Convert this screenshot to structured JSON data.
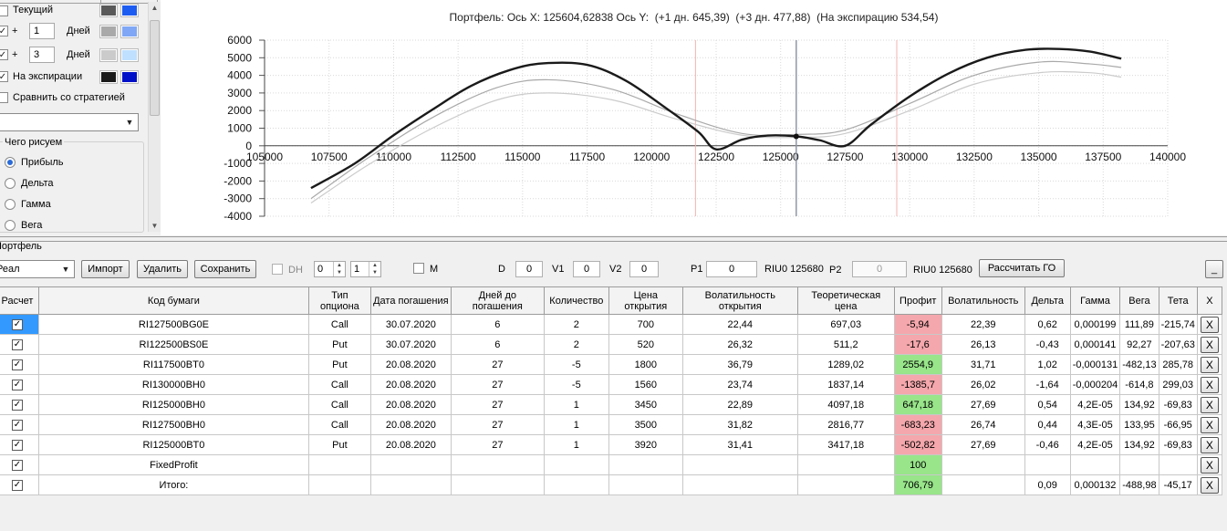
{
  "left_panel": {
    "current_label": "Текущий",
    "row_plus1": {
      "sign": "+",
      "days": "1",
      "unit": "Дней"
    },
    "row_plus3": {
      "sign": "+",
      "days": "3",
      "unit": "Дней"
    },
    "expiration_label": "На экспирации",
    "compare_label": "Сравнить со стратегией",
    "strategy_value": "",
    "draw_group_title": "Чего рисуем",
    "draw_options": [
      "Прибыль",
      "Дельта",
      "Гамма",
      "Вега"
    ],
    "selected_draw": "Прибыль",
    "colors": {
      "current": [
        "#595959",
        "#1d5cf0"
      ],
      "plus1": [
        "#a9a9a9",
        "#7fa7f5"
      ],
      "plus3": [
        "#cbcbcb",
        "#bfe0ff"
      ],
      "expiration": [
        "#1a1a1a",
        "#0010c8"
      ]
    }
  },
  "chart": {
    "title": "Портфель: Ось X: 125604,62838 Ось Y:  (+1 дн. 645,39)  (+3 дн. 477,88)  (На экспирацию 534,54)"
  },
  "chart_data": {
    "type": "line",
    "title": "Портфель: Ось X: 125604,62838 Ось Y:  (+1 дн. 645,39)  (+3 дн. 477,88)  (На экспирацию 534,54)",
    "xlim": [
      105000,
      140000
    ],
    "ylim": [
      -4000,
      6000
    ],
    "x_ticks": [
      "105000",
      "107500",
      "110000",
      "112500",
      "115000",
      "117500",
      "120000",
      "122500",
      "125000",
      "127500",
      "130000",
      "132500",
      "135000",
      "137500",
      "140000"
    ],
    "y_ticks": [
      "6000",
      "5000",
      "4000",
      "3000",
      "2000",
      "1000",
      "0",
      "-1000",
      "-2000",
      "-3000",
      "-4000"
    ],
    "grid": true,
    "cursor_x": 125604.62838,
    "vertical_markers": [
      121700,
      129500
    ],
    "series": [
      {
        "color": "#1a1a1a",
        "x": [
          106800,
          108500,
          110000,
          111500,
          113000,
          114500,
          115800,
          117500,
          119000,
          120500,
          121800,
          122500,
          123500,
          124500,
          125600,
          126500,
          127500,
          128500,
          130000,
          131500,
          133000,
          134500,
          135800,
          137000,
          138200
        ],
        "y": [
          -2400,
          -1000,
          600,
          2050,
          3400,
          4300,
          4680,
          4600,
          3700,
          2200,
          800,
          -200,
          350,
          580,
          535,
          320,
          0,
          1200,
          2800,
          4100,
          5000,
          5450,
          5500,
          5350,
          4950
        ]
      },
      {
        "color": "#a9a9a9",
        "x": [
          106800,
          109000,
          111500,
          114000,
          116000,
          118500,
          121000,
          123500,
          125600,
          127500,
          130000,
          132500,
          135000,
          137000,
          138200
        ],
        "y": [
          -3000,
          -700,
          1600,
          3300,
          3750,
          3200,
          1800,
          700,
          645,
          900,
          2400,
          4000,
          4750,
          4650,
          4450
        ]
      },
      {
        "color": "#cbcbcb",
        "x": [
          106800,
          109000,
          111500,
          114000,
          116000,
          118500,
          121000,
          123500,
          125600,
          127500,
          130000,
          132500,
          135000,
          137000,
          138200
        ],
        "y": [
          -3250,
          -1100,
          1000,
          2600,
          3000,
          2600,
          1500,
          600,
          478,
          700,
          2000,
          3500,
          4150,
          4150,
          3900
        ]
      }
    ]
  },
  "portfolio": {
    "section_label": "Портфель",
    "portfolio_select": "Реал",
    "buttons": {
      "import": "Импорт",
      "delete": "Удалить",
      "save": "Сохранить",
      "calc_go": "Рассчитать ГО",
      "minimize": "_"
    },
    "dh_label": "DH",
    "spin1": "0",
    "spin2": "1",
    "m_label": "M",
    "d_label": "D",
    "d_value": "0",
    "v1_label": "V1",
    "v1_value": "0",
    "v2_label": "V2",
    "v2_value": "0",
    "p1_label": "P1",
    "p1_value": "0",
    "p1_code": "RIU0 125680",
    "p2_label": "P2",
    "p2_value": "0",
    "p2_code": "RIU0 125680"
  },
  "table": {
    "headers": [
      "Расчет",
      "Код бумаги",
      "Тип опциона",
      "Дата погашения",
      "Дней до погашения",
      "Количество",
      "Цена открытия",
      "Волатильность открытия",
      "Теоретическая цена",
      "Профит",
      "Волатильность",
      "Дельта",
      "Гамма",
      "Вега",
      "Тета",
      "X"
    ],
    "rows": [
      {
        "code": "RI127500BG0E",
        "type": "Call",
        "date": "30.07.2020",
        "days": "6",
        "qty": "2",
        "price": "700",
        "vol_open": "22,44",
        "theor": "697,03",
        "profit": "-5,94",
        "vol": "22,39",
        "delta": "0,62",
        "gamma": "0,000199",
        "vega": "111,89",
        "theta": "-215,74",
        "x": "X"
      },
      {
        "code": "RI122500BS0E",
        "type": "Put",
        "date": "30.07.2020",
        "days": "6",
        "qty": "2",
        "price": "520",
        "vol_open": "26,32",
        "theor": "511,2",
        "profit": "-17,6",
        "vol": "26,13",
        "delta": "-0,43",
        "gamma": "0,000141",
        "vega": "92,27",
        "theta": "-207,63",
        "x": "X"
      },
      {
        "code": "RI117500BT0",
        "type": "Put",
        "date": "20.08.2020",
        "days": "27",
        "qty": "-5",
        "price": "1800",
        "vol_open": "36,79",
        "theor": "1289,02",
        "profit": "2554,9",
        "vol": "31,71",
        "delta": "1,02",
        "gamma": "-0,000131",
        "vega": "-482,13",
        "theta": "285,78",
        "x": "X"
      },
      {
        "code": "RI130000BH0",
        "type": "Call",
        "date": "20.08.2020",
        "days": "27",
        "qty": "-5",
        "price": "1560",
        "vol_open": "23,74",
        "theor": "1837,14",
        "profit": "-1385,7",
        "vol": "26,02",
        "delta": "-1,64",
        "gamma": "-0,000204",
        "vega": "-614,8",
        "theta": "299,03",
        "x": "X"
      },
      {
        "code": "RI125000BH0",
        "type": "Call",
        "date": "20.08.2020",
        "days": "27",
        "qty": "1",
        "price": "3450",
        "vol_open": "22,89",
        "theor": "4097,18",
        "profit": "647,18",
        "vol": "27,69",
        "delta": "0,54",
        "gamma": "4,2E-05",
        "vega": "134,92",
        "theta": "-69,83",
        "x": "X"
      },
      {
        "code": "RI127500BH0",
        "type": "Call",
        "date": "20.08.2020",
        "days": "27",
        "qty": "1",
        "price": "3500",
        "vol_open": "31,82",
        "theor": "2816,77",
        "profit": "-683,23",
        "vol": "26,74",
        "delta": "0,44",
        "gamma": "4,3E-05",
        "vega": "133,95",
        "theta": "-66,95",
        "x": "X"
      },
      {
        "code": "RI125000BT0",
        "type": "Put",
        "date": "20.08.2020",
        "days": "27",
        "qty": "1",
        "price": "3920",
        "vol_open": "31,41",
        "theor": "3417,18",
        "profit": "-502,82",
        "vol": "27,69",
        "delta": "-0,46",
        "gamma": "4,2E-05",
        "vega": "134,92",
        "theta": "-69,83",
        "x": "X"
      },
      {
        "code": "FixedProfit",
        "type": "",
        "date": "",
        "days": "",
        "qty": "",
        "price": "",
        "vol_open": "",
        "theor": "",
        "profit": "100",
        "vol": "",
        "delta": "",
        "gamma": "",
        "vega": "",
        "theta": "",
        "x": "X"
      },
      {
        "code": "Итого:",
        "type": "",
        "date": "",
        "days": "",
        "qty": "",
        "price": "",
        "vol_open": "",
        "theor": "",
        "profit": "706,79",
        "vol": "",
        "delta": "0,09",
        "gamma": "0,000132",
        "vega": "-488,98",
        "theta": "-45,17",
        "x": "X"
      }
    ],
    "profit_colors": {
      "positive": "#98e58a",
      "negative": "#f4a7ac"
    }
  }
}
